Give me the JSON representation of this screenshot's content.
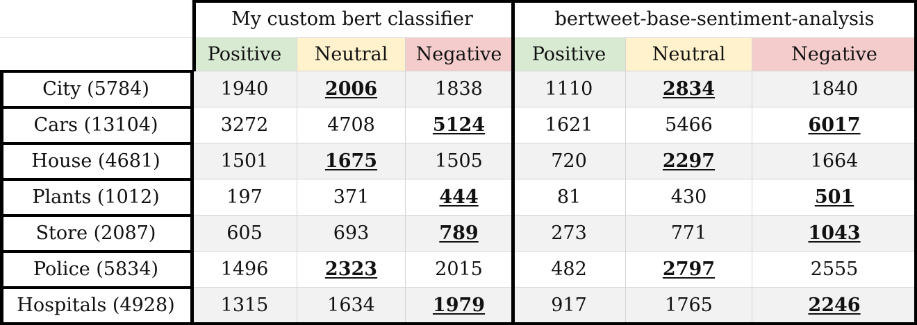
{
  "groups": [
    {
      "title": "My custom bert classifier",
      "subheaders": [
        "Positive",
        "Neutral",
        "Negative"
      ]
    },
    {
      "title": "bertweet-base-sentiment-analysis",
      "subheaders": [
        "Positive",
        "Neutral",
        "Negative"
      ]
    }
  ],
  "rows": [
    {
      "label": "City (5784)",
      "values": [
        "1940",
        "2006",
        "1838",
        "1110",
        "2834",
        "1840"
      ],
      "highlight": [
        1,
        4
      ]
    },
    {
      "label": "Cars (13104)",
      "values": [
        "3272",
        "4708",
        "5124",
        "1621",
        "5466",
        "6017"
      ],
      "highlight": [
        2,
        5
      ]
    },
    {
      "label": "House (4681)",
      "values": [
        "1501",
        "1675",
        "1505",
        "720",
        "2297",
        "1664"
      ],
      "highlight": [
        1,
        4
      ]
    },
    {
      "label": "Plants (1012)",
      "values": [
        "197",
        "371",
        "444",
        "81",
        "430",
        "501"
      ],
      "highlight": [
        2,
        5
      ]
    },
    {
      "label": "Store (2087)",
      "values": [
        "605",
        "693",
        "789",
        "273",
        "771",
        "1043"
      ],
      "highlight": [
        2,
        5
      ]
    },
    {
      "label": "Police (5834)",
      "values": [
        "1496",
        "2323",
        "2015",
        "482",
        "2797",
        "2555"
      ],
      "highlight": [
        1,
        4
      ]
    },
    {
      "label": "Hospitals (4928)",
      "values": [
        "1315",
        "1634",
        "1979",
        "917",
        "1765",
        "2246"
      ],
      "highlight": [
        2,
        5
      ]
    }
  ],
  "colors": {
    "positive": "#d9ead3",
    "neutral": "#fff2cc",
    "negative": "#f4cccc"
  }
}
